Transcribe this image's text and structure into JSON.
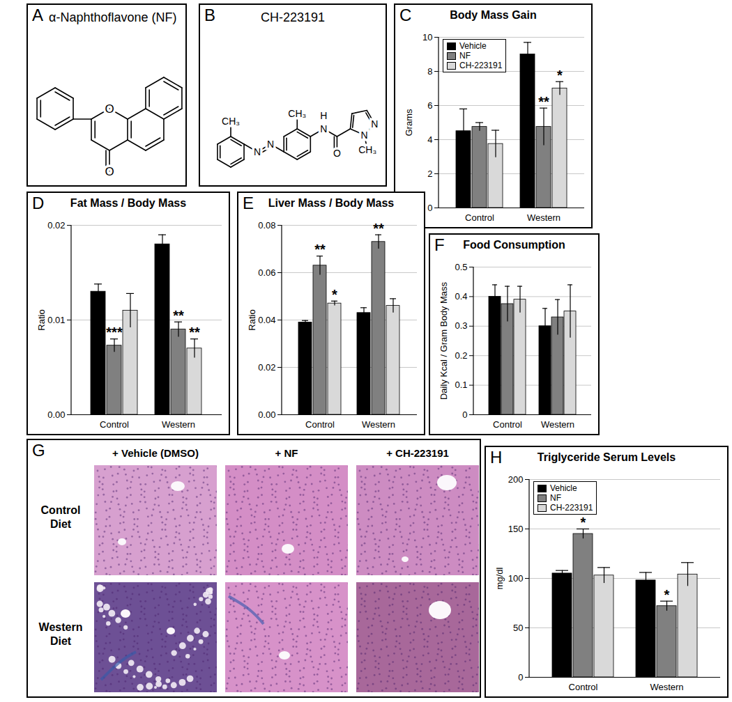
{
  "structures": [
    {
      "panel": "A",
      "title": "α-Naphthoflavone (NF)",
      "atoms": [
        "O",
        "O"
      ]
    },
    {
      "panel": "B",
      "title": "CH-223191",
      "atoms": [
        "CH₃",
        "N",
        "N",
        "CH₃",
        "H",
        "N",
        "O",
        "N",
        "N",
        "CH₃"
      ]
    }
  ],
  "chart_data": [
    {
      "panel": "C",
      "type": "bar",
      "title": "Body Mass Gain",
      "y_label": "Grams",
      "categories": [
        "Control",
        "Western"
      ],
      "series": [
        {
          "name": "Vehicle",
          "color": "#000000",
          "values": [
            4.5,
            9.0
          ],
          "error": [
            1.3,
            0.7
          ]
        },
        {
          "name": "NF",
          "color": "#808080",
          "values": [
            4.75,
            4.75
          ],
          "error": [
            0.25,
            1.1
          ]
        },
        {
          "name": "CH-223191",
          "color": "#d9d9d9",
          "values": [
            3.75,
            7.0
          ],
          "error": [
            0.8,
            0.4
          ]
        }
      ],
      "ylim": [
        0,
        10
      ],
      "yticks": [
        0,
        2,
        4,
        6,
        8,
        10
      ],
      "grid": true,
      "legend": "top-left",
      "annotations": [
        {
          "text": "**",
          "category": "Western",
          "series": "NF"
        },
        {
          "text": "*",
          "category": "Western",
          "series": "CH-223191"
        }
      ]
    },
    {
      "panel": "D",
      "type": "bar",
      "title": "Fat Mass / Body Mass",
      "y_label": "Ratio",
      "categories": [
        "Control",
        "Western"
      ],
      "series": [
        {
          "name": "Vehicle",
          "color": "#000000",
          "values": [
            0.013,
            0.018
          ],
          "error": [
            0.0008,
            0.001
          ]
        },
        {
          "name": "NF",
          "color": "#808080",
          "values": [
            0.0073,
            0.009
          ],
          "error": [
            0.0007,
            0.0008
          ]
        },
        {
          "name": "CH-223191",
          "color": "#d9d9d9",
          "values": [
            0.011,
            0.007
          ],
          "error": [
            0.0018,
            0.001
          ]
        }
      ],
      "ylim": [
        0,
        0.02
      ],
      "yticks": [
        {
          "value": 0,
          "label": "0.00"
        },
        0.01,
        0.02
      ],
      "grid": true,
      "annotations": [
        {
          "text": "***",
          "category": "Control",
          "series": "NF"
        },
        {
          "text": "**",
          "category": "Western",
          "series": "NF"
        },
        {
          "text": "**",
          "category": "Western",
          "series": "CH-223191"
        }
      ]
    },
    {
      "panel": "E",
      "type": "bar",
      "title": "Liver Mass / Body Mass",
      "y_label": "Ratio",
      "categories": [
        "Control",
        "Western"
      ],
      "series": [
        {
          "name": "Vehicle",
          "color": "#000000",
          "values": [
            0.039,
            0.043
          ],
          "error": [
            0.0008,
            0.0022
          ]
        },
        {
          "name": "NF",
          "color": "#808080",
          "values": [
            0.063,
            0.073
          ],
          "error": [
            0.004,
            0.003
          ]
        },
        {
          "name": "CH-223191",
          "color": "#d9d9d9",
          "values": [
            0.047,
            0.046
          ],
          "error": [
            0.001,
            0.003
          ]
        }
      ],
      "ylim": [
        0,
        0.08
      ],
      "yticks": [
        {
          "value": 0,
          "label": "0.00"
        },
        0.02,
        0.04,
        0.06,
        0.08
      ],
      "grid": true,
      "annotations": [
        {
          "text": "**",
          "category": "Control",
          "series": "NF"
        },
        {
          "text": "*",
          "category": "Control",
          "series": "CH-223191"
        },
        {
          "text": "**",
          "category": "Western",
          "series": "NF"
        }
      ]
    },
    {
      "panel": "F",
      "type": "bar",
      "title": "Food Consumption",
      "y_label": "Daily Kcal / Gram Body Mass",
      "categories": [
        "Control",
        "Western"
      ],
      "series": [
        {
          "name": "Vehicle",
          "color": "#000000",
          "values": [
            0.4,
            0.3
          ],
          "error": [
            0.04,
            0.06
          ]
        },
        {
          "name": "NF",
          "color": "#808080",
          "values": [
            0.375,
            0.33
          ],
          "error": [
            0.06,
            0.06
          ]
        },
        {
          "name": "CH-223191",
          "color": "#d9d9d9",
          "values": [
            0.39,
            0.35
          ],
          "error": [
            0.045,
            0.09
          ]
        }
      ],
      "ylim": [
        0,
        0.5
      ],
      "yticks": [
        0,
        0.1,
        0.2,
        0.3,
        0.4,
        0.5
      ],
      "grid": true
    },
    {
      "panel": "H",
      "type": "bar",
      "title": "Triglyceride Serum Levels",
      "y_label": "mg/dl",
      "categories": [
        "Control",
        "Western"
      ],
      "series": [
        {
          "name": "Vehicle",
          "color": "#000000",
          "values": [
            105,
            98
          ],
          "error": [
            3,
            8
          ]
        },
        {
          "name": "NF",
          "color": "#808080",
          "values": [
            145,
            72
          ],
          "error": [
            5,
            5
          ]
        },
        {
          "name": "CH-223191",
          "color": "#d9d9d9",
          "values": [
            103,
            104
          ],
          "error": [
            8,
            12
          ]
        }
      ],
      "ylim": [
        0,
        200
      ],
      "yticks": [
        0,
        50,
        100,
        150,
        200
      ],
      "grid": true,
      "legend": "top-left",
      "annotations": [
        {
          "text": "*",
          "category": "Control",
          "series": "NF"
        },
        {
          "text": "*",
          "category": "Western",
          "series": "NF"
        }
      ]
    }
  ],
  "histology": {
    "panel": "G",
    "columns": [
      "+ Vehicle (DMSO)",
      "+ NF",
      "+ CH-223191"
    ],
    "rows": [
      "Control Diet",
      "Western Diet"
    ]
  }
}
